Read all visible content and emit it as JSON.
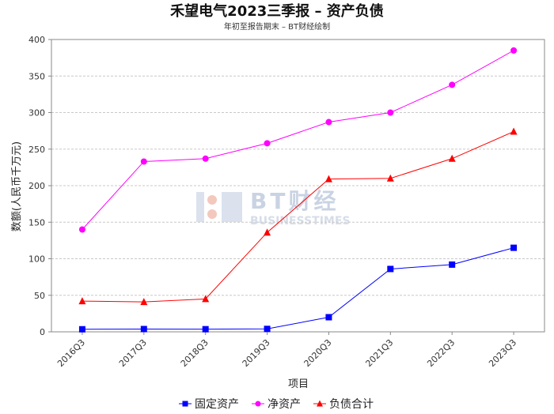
{
  "chart_data": {
    "type": "line",
    "title": "禾望电气2023三季报 – 资产负债",
    "subtitle": "年初至报告期末 – BT财经绘制",
    "xlabel": "项目",
    "ylabel": "数额(人民币千万元)",
    "ylim": [
      0,
      400
    ],
    "yticks": [
      0,
      50,
      100,
      150,
      200,
      250,
      300,
      350,
      400
    ],
    "categories": [
      "2016Q3",
      "2017Q3",
      "2018Q3",
      "2019Q3",
      "2020Q3",
      "2021Q3",
      "2022Q3",
      "2023Q3"
    ],
    "grid": true,
    "legend_position": "bottom",
    "series": [
      {
        "name": "固定资产",
        "color": "#0000ff",
        "marker": "square",
        "values": [
          3.5,
          3.8,
          3.6,
          4.0,
          20,
          86,
          92,
          115
        ]
      },
      {
        "name": "净资产",
        "color": "#ff00ff",
        "marker": "circle",
        "values": [
          140,
          233,
          237,
          258,
          287,
          300,
          338,
          385
        ]
      },
      {
        "name": "负债合计",
        "color": "#ff0000",
        "marker": "triangle",
        "values": [
          42,
          41,
          45,
          136,
          209,
          210,
          237,
          274
        ]
      }
    ]
  },
  "watermark": {
    "text": "BT财经",
    "subtext": "BUSINESSTIMES"
  }
}
